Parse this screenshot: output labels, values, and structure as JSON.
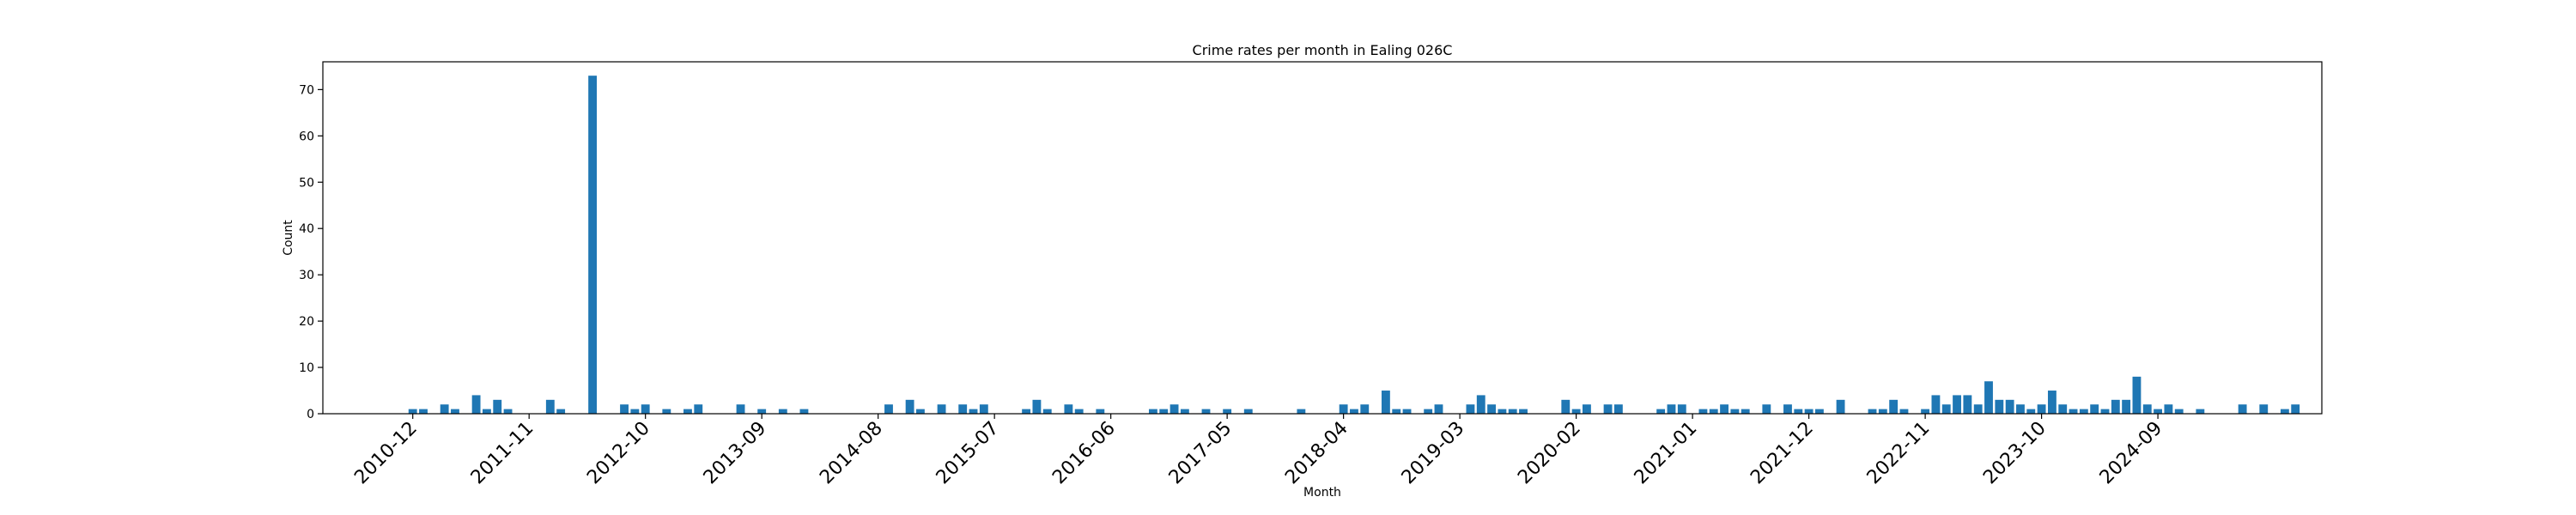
{
  "chart_data": {
    "type": "bar",
    "title": "Crime rates per month in Ealing 026C",
    "xlabel": "Month",
    "ylabel": "Count",
    "ylim": [
      0,
      76
    ],
    "xlim": [
      -8.5,
      180.5
    ],
    "yticks": [
      0,
      10,
      20,
      30,
      40,
      50,
      60,
      70
    ],
    "xticks": [
      {
        "label": "2010-12",
        "index": 0
      },
      {
        "label": "2011-11",
        "index": 11
      },
      {
        "label": "2012-10",
        "index": 22
      },
      {
        "label": "2013-09",
        "index": 33
      },
      {
        "label": "2014-08",
        "index": 44
      },
      {
        "label": "2015-07",
        "index": 55
      },
      {
        "label": "2016-06",
        "index": 66
      },
      {
        "label": "2017-05",
        "index": 77
      },
      {
        "label": "2018-04",
        "index": 88
      },
      {
        "label": "2019-03",
        "index": 99
      },
      {
        "label": "2020-02",
        "index": 110
      },
      {
        "label": "2021-01",
        "index": 121
      },
      {
        "label": "2021-12",
        "index": 132
      },
      {
        "label": "2022-11",
        "index": 143
      },
      {
        "label": "2023-10",
        "index": 154
      },
      {
        "label": "2024-09",
        "index": 165
      }
    ],
    "start_month": "2010-12",
    "values": [
      1,
      1,
      0,
      2,
      1,
      0,
      4,
      1,
      3,
      1,
      0,
      0,
      0,
      3,
      1,
      0,
      0,
      73,
      0,
      0,
      2,
      1,
      2,
      0,
      1,
      0,
      1,
      2,
      0,
      0,
      0,
      2,
      0,
      1,
      0,
      1,
      0,
      1,
      0,
      0,
      0,
      0,
      0,
      0,
      0,
      2,
      0,
      3,
      1,
      0,
      2,
      0,
      2,
      1,
      2,
      0,
      0,
      0,
      1,
      3,
      1,
      0,
      2,
      1,
      0,
      1,
      0,
      0,
      0,
      0,
      1,
      1,
      2,
      1,
      0,
      1,
      0,
      1,
      0,
      1,
      0,
      0,
      0,
      0,
      1,
      0,
      0,
      0,
      2,
      1,
      2,
      0,
      5,
      1,
      1,
      0,
      1,
      2,
      0,
      0,
      2,
      4,
      2,
      1,
      1,
      1,
      0,
      0,
      0,
      3,
      1,
      2,
      0,
      2,
      2,
      0,
      0,
      0,
      1,
      2,
      2,
      0,
      1,
      1,
      2,
      1,
      1,
      0,
      2,
      0,
      2,
      1,
      1,
      1,
      0,
      3,
      0,
      0,
      1,
      1,
      3,
      1,
      0,
      1,
      4,
      2,
      4,
      4,
      2,
      7,
      3,
      3,
      2,
      1,
      2,
      5,
      2,
      1,
      1,
      2,
      1,
      3,
      3,
      8,
      2,
      1,
      2,
      1,
      0,
      1,
      0,
      0,
      0,
      2,
      0,
      2,
      0,
      1,
      2
    ]
  }
}
